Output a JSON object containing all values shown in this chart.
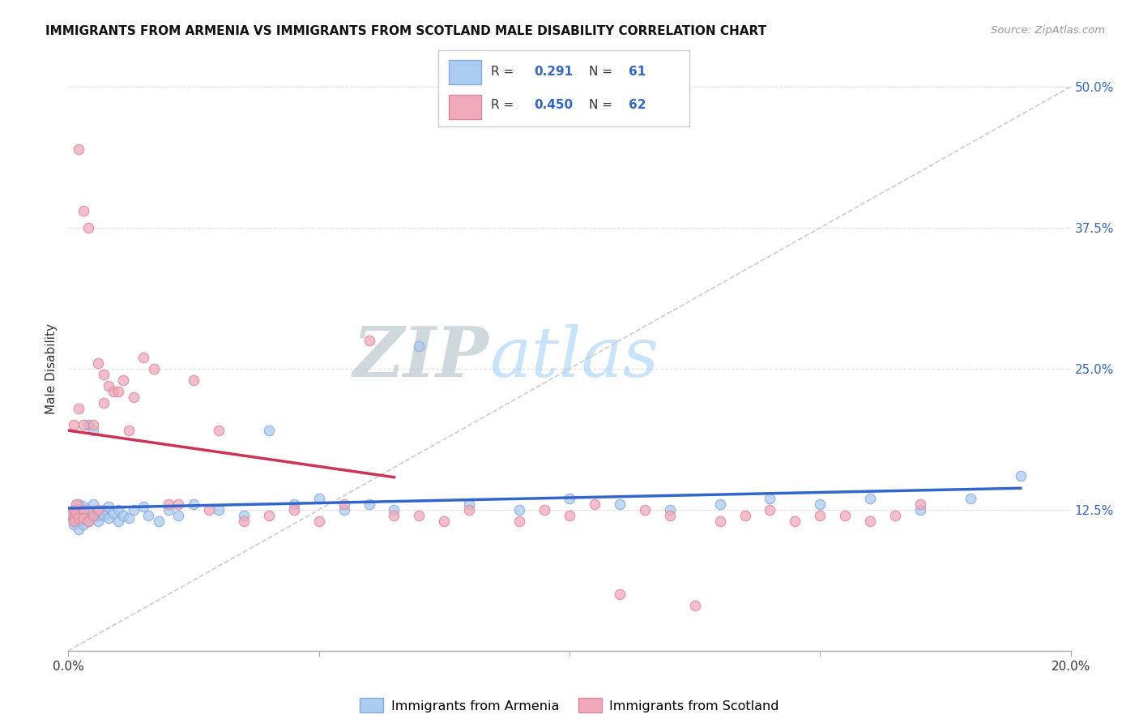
{
  "title": "IMMIGRANTS FROM ARMENIA VS IMMIGRANTS FROM SCOTLAND MALE DISABILITY CORRELATION CHART",
  "source": "Source: ZipAtlas.com",
  "ylabel": "Male Disability",
  "xlim": [
    0.0,
    0.2
  ],
  "ylim": [
    0.0,
    0.5
  ],
  "yticks": [
    0.0,
    0.125,
    0.25,
    0.375,
    0.5
  ],
  "yticklabels_right": [
    "",
    "12.5%",
    "25.0%",
    "37.5%",
    "50.0%"
  ],
  "xtick_labels": [
    "0.0%",
    "",
    "",
    "",
    "20.0%"
  ],
  "armenia_color": "#aaccf0",
  "armenia_edge": "#88aadd",
  "scotland_color": "#f0aabb",
  "scotland_edge": "#dd8899",
  "line_armenia": "#3366cc",
  "line_scotland": "#cc3355",
  "diagonal_color": "#cccccc",
  "R_armenia": 0.291,
  "N_armenia": 61,
  "R_scotland": 0.45,
  "N_scotland": 62,
  "bg": "#ffffff",
  "grid_color": "#dddddd",
  "watermark_zip": "ZIP",
  "watermark_atlas": "atlas",
  "arm_x": [
    0.0005,
    0.001,
    0.001,
    0.001,
    0.001,
    0.0015,
    0.0015,
    0.002,
    0.002,
    0.002,
    0.002,
    0.002,
    0.003,
    0.003,
    0.003,
    0.003,
    0.004,
    0.004,
    0.004,
    0.005,
    0.005,
    0.005,
    0.006,
    0.006,
    0.007,
    0.007,
    0.008,
    0.008,
    0.009,
    0.01,
    0.01,
    0.011,
    0.012,
    0.013,
    0.015,
    0.016,
    0.018,
    0.02,
    0.022,
    0.025,
    0.03,
    0.035,
    0.04,
    0.045,
    0.05,
    0.055,
    0.06,
    0.065,
    0.07,
    0.08,
    0.09,
    0.1,
    0.11,
    0.12,
    0.13,
    0.14,
    0.15,
    0.16,
    0.17,
    0.18,
    0.19
  ],
  "arm_y": [
    0.12,
    0.125,
    0.118,
    0.115,
    0.112,
    0.122,
    0.117,
    0.13,
    0.115,
    0.125,
    0.12,
    0.108,
    0.128,
    0.118,
    0.112,
    0.122,
    0.2,
    0.125,
    0.115,
    0.195,
    0.13,
    0.118,
    0.12,
    0.115,
    0.125,
    0.12,
    0.128,
    0.118,
    0.122,
    0.125,
    0.115,
    0.12,
    0.118,
    0.125,
    0.128,
    0.12,
    0.115,
    0.125,
    0.12,
    0.13,
    0.125,
    0.12,
    0.195,
    0.13,
    0.135,
    0.125,
    0.13,
    0.125,
    0.27,
    0.13,
    0.125,
    0.135,
    0.13,
    0.125,
    0.13,
    0.135,
    0.13,
    0.135,
    0.125,
    0.135,
    0.155
  ],
  "scot_x": [
    0.0005,
    0.001,
    0.001,
    0.001,
    0.001,
    0.0015,
    0.0015,
    0.002,
    0.002,
    0.002,
    0.003,
    0.003,
    0.003,
    0.003,
    0.004,
    0.004,
    0.005,
    0.005,
    0.006,
    0.006,
    0.007,
    0.007,
    0.008,
    0.009,
    0.01,
    0.011,
    0.012,
    0.013,
    0.015,
    0.017,
    0.02,
    0.022,
    0.025,
    0.028,
    0.03,
    0.035,
    0.04,
    0.045,
    0.05,
    0.055,
    0.06,
    0.065,
    0.07,
    0.075,
    0.08,
    0.09,
    0.095,
    0.1,
    0.105,
    0.11,
    0.115,
    0.12,
    0.125,
    0.13,
    0.135,
    0.14,
    0.145,
    0.15,
    0.155,
    0.16,
    0.165,
    0.17
  ],
  "scot_y": [
    0.12,
    0.125,
    0.118,
    0.115,
    0.2,
    0.122,
    0.13,
    0.215,
    0.118,
    0.445,
    0.125,
    0.39,
    0.118,
    0.2,
    0.115,
    0.375,
    0.2,
    0.12,
    0.255,
    0.125,
    0.245,
    0.22,
    0.235,
    0.23,
    0.23,
    0.24,
    0.195,
    0.225,
    0.26,
    0.25,
    0.13,
    0.13,
    0.24,
    0.125,
    0.195,
    0.115,
    0.12,
    0.125,
    0.115,
    0.13,
    0.275,
    0.12,
    0.12,
    0.115,
    0.125,
    0.115,
    0.125,
    0.12,
    0.13,
    0.05,
    0.125,
    0.12,
    0.04,
    0.115,
    0.12,
    0.125,
    0.115,
    0.12,
    0.12,
    0.115,
    0.12,
    0.13
  ]
}
